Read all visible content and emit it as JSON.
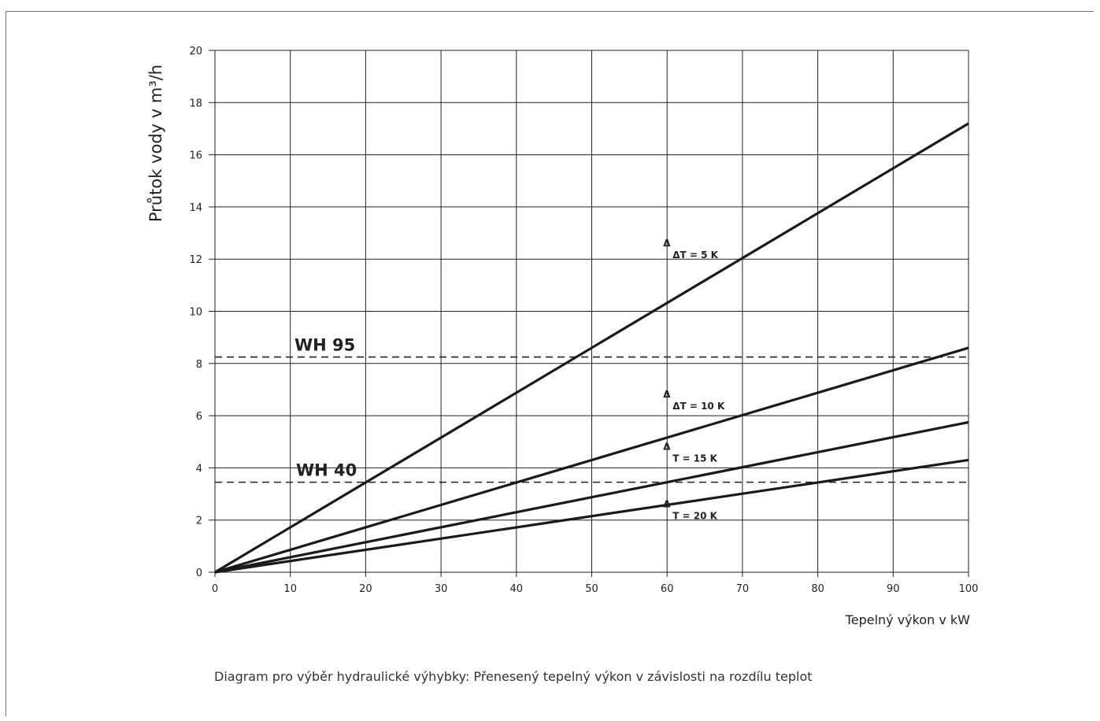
{
  "chart_data": {
    "type": "line",
    "ylabel": "Průtok vody v m³/h",
    "xlabel": "Tepelný výkon v kW",
    "xlim": [
      0,
      100
    ],
    "ylim": [
      0,
      20
    ],
    "xticks": [
      "0",
      "10",
      "20",
      "30",
      "40",
      "50",
      "60",
      "70",
      "80",
      "90",
      "100"
    ],
    "yticks": [
      "0",
      "2",
      "4",
      "6",
      "8",
      "10",
      "12",
      "14",
      "16",
      "18",
      "20"
    ],
    "grid": true,
    "series": [
      {
        "name": "ΔT = 5 K",
        "x": [
          0,
          100
        ],
        "y": [
          0,
          17.2
        ]
      },
      {
        "name": "ΔT = 10 K",
        "x": [
          0,
          100
        ],
        "y": [
          0,
          8.6
        ]
      },
      {
        "name": "T = 15 K",
        "x": [
          0,
          100
        ],
        "y": [
          0,
          5.75
        ]
      },
      {
        "name": "T = 20 K",
        "x": [
          0,
          100
        ],
        "y": [
          0,
          4.3
        ]
      }
    ],
    "reference_lines": [
      {
        "label": "WH 95",
        "y": 8.25
      },
      {
        "label": "WH 40",
        "y": 3.45
      }
    ],
    "annotation_marker": "Δ"
  },
  "caption": "Diagram pro výběr hydraulické výhybky: Přenesený tepelný výkon v závislosti na rozdílu teplot"
}
